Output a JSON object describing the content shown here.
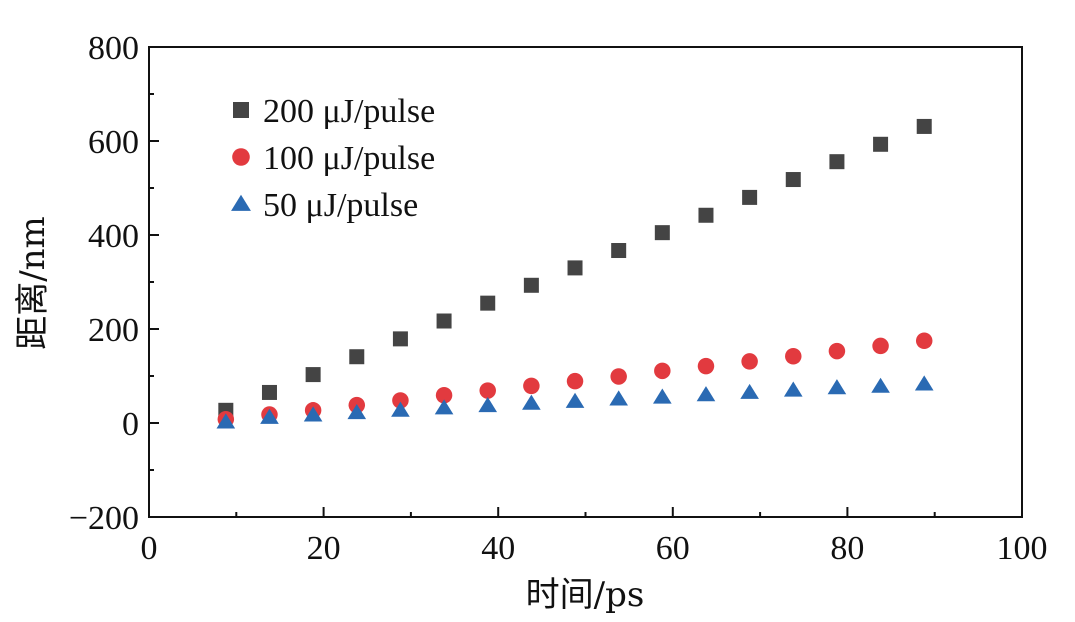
{
  "chart_data": {
    "type": "scatter",
    "xlabel": "时间/ps",
    "ylabel": "距离/nm",
    "xlim": [
      0,
      100
    ],
    "ylim": [
      -200,
      800
    ],
    "x_ticks": [
      "0",
      "20",
      "40",
      "60",
      "80",
      "100"
    ],
    "y_ticks": [
      "−200",
      "0",
      "200",
      "400",
      "600",
      "800"
    ],
    "grid": false,
    "legend_position": "top-left",
    "x": [
      8.8,
      13.8,
      18.8,
      23.8,
      28.8,
      33.8,
      38.8,
      43.8,
      48.8,
      53.8,
      58.8,
      63.8,
      68.8,
      73.8,
      78.8,
      83.8,
      88.8
    ],
    "series": [
      {
        "name": "200 μJ/pulse",
        "marker": "square",
        "color": "#444444",
        "values": [
          27,
          65,
          103,
          141,
          179,
          217,
          255,
          293,
          330,
          367,
          405,
          442,
          480,
          518,
          556,
          593,
          631
        ]
      },
      {
        "name": "100 μJ/pulse",
        "marker": "circle",
        "color": "#e23a3f",
        "values": [
          8,
          18,
          27,
          38,
          48,
          59,
          69,
          79,
          89,
          99,
          111,
          121,
          131,
          142,
          153,
          164,
          175
        ]
      },
      {
        "name": "50 μJ/pulse",
        "marker": "triangle",
        "color": "#2a6ab3",
        "values": [
          2,
          12,
          17,
          22,
          27,
          32,
          37,
          42,
          46,
          51,
          55,
          60,
          65,
          70,
          75,
          78,
          83
        ]
      }
    ]
  }
}
